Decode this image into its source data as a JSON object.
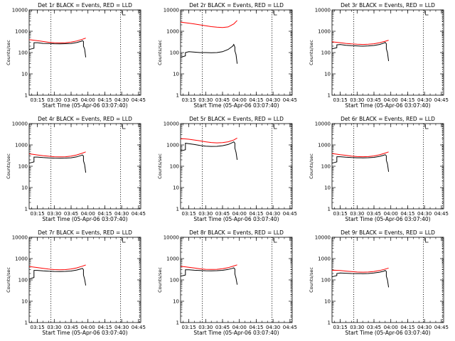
{
  "figure": {
    "x_tick_labels": [
      "03:15",
      "03:30",
      "03:45",
      "04:00",
      "04:15",
      "04:30",
      "04:45"
    ],
    "y_tick_labels": [
      "1",
      "10",
      "100",
      "1000",
      "10000"
    ],
    "xlabel": "Start Time (05-Apr-06 03:07:40)",
    "ylabel": "Counts/sec",
    "colors": {
      "events": "#000000",
      "lld": "#ff0000",
      "background": "#ffffff"
    }
  },
  "chart_data": [
    {
      "type": "line",
      "title": "Det 1r BLACK = Events, RED = LLD",
      "xlabel": "Start Time (05-Apr-06 03:07:40)",
      "ylabel": "Counts/sec",
      "y_scale": "log",
      "ylim": [
        1,
        10000
      ],
      "xlim": [
        "03:07:40",
        "04:47:00"
      ],
      "x_ticks": [
        "03:15",
        "03:30",
        "03:45",
        "04:00",
        "04:15",
        "04:30",
        "04:45"
      ],
      "y_ticks": [
        "1",
        "10",
        "100",
        "1000",
        "10000"
      ],
      "vertical_dotted_lines": [
        "03:27",
        "04:29",
        "04:46"
      ],
      "series": [
        {
          "name": "Events",
          "color": "#000000",
          "x": [
            "03:07:40",
            "03:10",
            "03:12",
            "03:12",
            "03:15",
            "03:20",
            "03:25",
            "03:30",
            "03:35",
            "03:40",
            "03:45",
            "03:50",
            "03:54",
            "03:55",
            "03:56",
            "03:56",
            "03:57",
            "03:58"
          ],
          "y": [
            140,
            150,
            160,
            290,
            290,
            270,
            265,
            260,
            258,
            262,
            268,
            295,
            340,
            360,
            330,
            200,
            150,
            60
          ]
        },
        {
          "name": "LLD",
          "color": "#ff0000",
          "x": [
            "03:07:40",
            "03:10",
            "03:15",
            "03:20",
            "03:25",
            "03:30",
            "03:35",
            "03:40",
            "03:45",
            "03:50",
            "03:55",
            "03:58"
          ],
          "y": [
            400,
            390,
            360,
            330,
            305,
            290,
            285,
            290,
            310,
            350,
            420,
            480
          ]
        }
      ]
    },
    {
      "type": "line",
      "title": "Det 2r BLACK = Events, RED = LLD",
      "xlabel": "Start Time (05-Apr-06 03:07:40)",
      "ylabel": "Counts/sec",
      "y_scale": "log",
      "ylim": [
        1,
        10000
      ],
      "xlim": [
        "03:07:40",
        "04:47:00"
      ],
      "x_ticks": [
        "03:15",
        "03:30",
        "03:45",
        "04:00",
        "04:15",
        "04:30",
        "04:45"
      ],
      "y_ticks": [
        "1",
        "10",
        "100",
        "1000",
        "10000"
      ],
      "vertical_dotted_lines": [
        "03:27",
        "04:29",
        "04:46"
      ],
      "series": [
        {
          "name": "Events",
          "color": "#000000",
          "x": [
            "03:07:40",
            "03:10",
            "03:12",
            "03:12",
            "03:15",
            "03:20",
            "03:25",
            "03:30",
            "03:35",
            "03:40",
            "03:45",
            "03:50",
            "03:54",
            "03:55",
            "03:56",
            "03:56",
            "03:57",
            "03:58"
          ],
          "y": [
            60,
            65,
            70,
            100,
            110,
            105,
            100,
            100,
            98,
            100,
            110,
            140,
            200,
            240,
            180,
            120,
            80,
            30
          ]
        },
        {
          "name": "LLD",
          "color": "#ff0000",
          "x": [
            "03:07:40",
            "03:10",
            "03:15",
            "03:20",
            "03:25",
            "03:30",
            "03:35",
            "03:40",
            "03:45",
            "03:50",
            "03:55",
            "03:58"
          ],
          "y": [
            2700,
            2600,
            2400,
            2200,
            2000,
            1800,
            1650,
            1550,
            1500,
            1600,
            2200,
            3200
          ]
        }
      ]
    },
    {
      "type": "line",
      "title": "Det 3r BLACK = Events, RED = LLD",
      "xlabel": "Start Time (05-Apr-06 03:07:40)",
      "ylabel": "Counts/sec",
      "y_scale": "log",
      "ylim": [
        1,
        10000
      ],
      "xlim": [
        "03:07:40",
        "04:47:00"
      ],
      "x_ticks": [
        "03:15",
        "03:30",
        "03:45",
        "04:00",
        "04:15",
        "04:30",
        "04:45"
      ],
      "y_ticks": [
        "1",
        "10",
        "100",
        "1000",
        "10000"
      ],
      "vertical_dotted_lines": [
        "03:27",
        "04:29",
        "04:46"
      ],
      "series": [
        {
          "name": "Events",
          "color": "#000000",
          "x": [
            "03:07:40",
            "03:10",
            "03:12",
            "03:12",
            "03:15",
            "03:20",
            "03:25",
            "03:30",
            "03:35",
            "03:40",
            "03:45",
            "03:50",
            "03:54",
            "03:55",
            "03:56",
            "03:56",
            "03:57",
            "03:58"
          ],
          "y": [
            150,
            160,
            170,
            230,
            240,
            220,
            210,
            205,
            200,
            205,
            215,
            240,
            280,
            300,
            260,
            150,
            100,
            40
          ]
        },
        {
          "name": "LLD",
          "color": "#ff0000",
          "x": [
            "03:07:40",
            "03:10",
            "03:15",
            "03:20",
            "03:25",
            "03:30",
            "03:35",
            "03:40",
            "03:45",
            "03:50",
            "03:55",
            "03:58"
          ],
          "y": [
            320,
            310,
            290,
            270,
            255,
            245,
            240,
            245,
            260,
            290,
            340,
            380
          ]
        }
      ]
    },
    {
      "type": "line",
      "title": "Det 4r BLACK = Events, RED = LLD",
      "xlabel": "Start Time (05-Apr-06 03:07:40)",
      "ylabel": "Counts/sec",
      "y_scale": "log",
      "ylim": [
        1,
        10000
      ],
      "xlim": [
        "03:07:40",
        "04:47:00"
      ],
      "x_ticks": [
        "03:15",
        "03:30",
        "03:45",
        "04:00",
        "04:15",
        "04:30",
        "04:45"
      ],
      "y_ticks": [
        "1",
        "10",
        "100",
        "1000",
        "10000"
      ],
      "vertical_dotted_lines": [
        "03:27",
        "04:29",
        "04:46"
      ],
      "series": [
        {
          "name": "Events",
          "color": "#000000",
          "x": [
            "03:07:40",
            "03:10",
            "03:12",
            "03:12",
            "03:15",
            "03:20",
            "03:25",
            "03:30",
            "03:35",
            "03:40",
            "03:45",
            "03:50",
            "03:54",
            "03:55",
            "03:56",
            "03:56",
            "03:57",
            "03:58"
          ],
          "y": [
            140,
            150,
            160,
            270,
            270,
            255,
            245,
            240,
            238,
            242,
            250,
            275,
            320,
            340,
            300,
            180,
            120,
            50
          ]
        },
        {
          "name": "LLD",
          "color": "#ff0000",
          "x": [
            "03:07:40",
            "03:10",
            "03:15",
            "03:20",
            "03:25",
            "03:30",
            "03:35",
            "03:40",
            "03:45",
            "03:50",
            "03:55",
            "03:58"
          ],
          "y": [
            380,
            370,
            340,
            315,
            295,
            280,
            275,
            280,
            300,
            340,
            410,
            470
          ]
        }
      ]
    },
    {
      "type": "line",
      "title": "Det 5r BLACK = Events, RED = LLD",
      "xlabel": "Start Time (05-Apr-06 03:07:40)",
      "ylabel": "Counts/sec",
      "y_scale": "log",
      "ylim": [
        1,
        10000
      ],
      "xlim": [
        "03:07:40",
        "04:47:00"
      ],
      "x_ticks": [
        "03:15",
        "03:30",
        "03:45",
        "04:00",
        "04:15",
        "04:30",
        "04:45"
      ],
      "y_ticks": [
        "1",
        "10",
        "100",
        "1000",
        "10000"
      ],
      "vertical_dotted_lines": [
        "03:27",
        "04:29",
        "04:46"
      ],
      "series": [
        {
          "name": "Events",
          "color": "#000000",
          "x": [
            "03:07:40",
            "03:10",
            "03:12",
            "03:12",
            "03:15",
            "03:20",
            "03:25",
            "03:30",
            "03:35",
            "03:40",
            "03:45",
            "03:50",
            "03:54",
            "03:55",
            "03:56",
            "03:56",
            "03:57",
            "03:58"
          ],
          "y": [
            550,
            560,
            600,
            1200,
            1150,
            1050,
            950,
            880,
            850,
            860,
            920,
            1050,
            1300,
            1400,
            1200,
            700,
            450,
            200
          ]
        },
        {
          "name": "LLD",
          "color": "#ff0000",
          "x": [
            "03:07:40",
            "03:10",
            "03:15",
            "03:20",
            "03:25",
            "03:30",
            "03:35",
            "03:40",
            "03:45",
            "03:50",
            "03:55",
            "03:58"
          ],
          "y": [
            1900,
            1950,
            1850,
            1700,
            1550,
            1400,
            1300,
            1250,
            1280,
            1400,
            1700,
            2100
          ]
        }
      ]
    },
    {
      "type": "line",
      "title": "Det 6r BLACK = Events, RED = LLD",
      "xlabel": "Start Time (05-Apr-06 03:07:40)",
      "ylabel": "Counts/sec",
      "y_scale": "log",
      "ylim": [
        1,
        10000
      ],
      "xlim": [
        "03:07:40",
        "04:47:00"
      ],
      "x_ticks": [
        "03:15",
        "03:30",
        "03:45",
        "04:00",
        "04:15",
        "04:30",
        "04:45"
      ],
      "y_ticks": [
        "1",
        "10",
        "100",
        "1000",
        "10000"
      ],
      "vertical_dotted_lines": [
        "03:27",
        "04:29",
        "04:46"
      ],
      "series": [
        {
          "name": "Events",
          "color": "#000000",
          "x": [
            "03:07:40",
            "03:10",
            "03:12",
            "03:12",
            "03:15",
            "03:20",
            "03:25",
            "03:30",
            "03:35",
            "03:40",
            "03:45",
            "03:50",
            "03:54",
            "03:55",
            "03:56",
            "03:56",
            "03:57",
            "03:58"
          ],
          "y": [
            140,
            150,
            160,
            280,
            280,
            265,
            255,
            250,
            248,
            252,
            262,
            290,
            330,
            350,
            310,
            190,
            130,
            55
          ]
        },
        {
          "name": "LLD",
          "color": "#ff0000",
          "x": [
            "03:07:40",
            "03:10",
            "03:15",
            "03:20",
            "03:25",
            "03:30",
            "03:35",
            "03:40",
            "03:45",
            "03:50",
            "03:55",
            "03:58"
          ],
          "y": [
            390,
            380,
            350,
            325,
            300,
            285,
            280,
            285,
            305,
            345,
            415,
            470
          ]
        }
      ]
    },
    {
      "type": "line",
      "title": "Det 7r BLACK = Events, RED = LLD",
      "xlabel": "Start Time (05-Apr-06 03:07:40)",
      "ylabel": "Counts/sec",
      "y_scale": "log",
      "ylim": [
        1,
        10000
      ],
      "xlim": [
        "03:07:40",
        "04:47:00"
      ],
      "x_ticks": [
        "03:15",
        "03:30",
        "03:45",
        "04:00",
        "04:15",
        "04:30",
        "04:45"
      ],
      "y_ticks": [
        "1",
        "10",
        "100",
        "1000",
        "10000"
      ],
      "vertical_dotted_lines": [
        "03:27",
        "04:29",
        "04:46"
      ],
      "series": [
        {
          "name": "Events",
          "color": "#000000",
          "x": [
            "03:07:40",
            "03:10",
            "03:12",
            "03:12",
            "03:15",
            "03:20",
            "03:25",
            "03:30",
            "03:35",
            "03:40",
            "03:45",
            "03:50",
            "03:54",
            "03:55",
            "03:56",
            "03:56",
            "03:57",
            "03:58"
          ],
          "y": [
            110,
            120,
            130,
            280,
            280,
            265,
            255,
            250,
            248,
            252,
            262,
            290,
            330,
            350,
            300,
            170,
            110,
            55
          ]
        },
        {
          "name": "LLD",
          "color": "#ff0000",
          "x": [
            "03:07:40",
            "03:10",
            "03:15",
            "03:20",
            "03:25",
            "03:30",
            "03:35",
            "03:40",
            "03:45",
            "03:50",
            "03:55",
            "03:58"
          ],
          "y": [
            420,
            410,
            380,
            350,
            320,
            305,
            300,
            305,
            325,
            365,
            440,
            500
          ]
        }
      ]
    },
    {
      "type": "line",
      "title": "Det 8r BLACK = Events, RED = LLD",
      "xlabel": "Start Time (05-Apr-06 03:07:40)",
      "ylabel": "Counts/sec",
      "y_scale": "log",
      "ylim": [
        1,
        10000
      ],
      "xlim": [
        "03:07:40",
        "04:47:00"
      ],
      "x_ticks": [
        "03:15",
        "03:30",
        "03:45",
        "04:00",
        "04:15",
        "04:30",
        "04:45"
      ],
      "y_ticks": [
        "1",
        "10",
        "100",
        "1000",
        "10000"
      ],
      "vertical_dotted_lines": [
        "03:27",
        "04:29",
        "04:46"
      ],
      "series": [
        {
          "name": "Events",
          "color": "#000000",
          "x": [
            "03:07:40",
            "03:10",
            "03:12",
            "03:12",
            "03:15",
            "03:20",
            "03:25",
            "03:30",
            "03:35",
            "03:40",
            "03:45",
            "03:50",
            "03:54",
            "03:55",
            "03:56",
            "03:56",
            "03:57",
            "03:58"
          ],
          "y": [
            150,
            160,
            170,
            300,
            300,
            285,
            275,
            270,
            268,
            272,
            282,
            310,
            350,
            370,
            320,
            190,
            120,
            60
          ]
        },
        {
          "name": "LLD",
          "color": "#ff0000",
          "x": [
            "03:07:40",
            "03:10",
            "03:15",
            "03:20",
            "03:25",
            "03:30",
            "03:35",
            "03:40",
            "03:45",
            "03:50",
            "03:55",
            "03:58"
          ],
          "y": [
            430,
            420,
            390,
            360,
            330,
            315,
            310,
            315,
            335,
            375,
            450,
            510
          ]
        }
      ]
    },
    {
      "type": "line",
      "title": "Det 9r BLACK = Events, RED = LLD",
      "xlabel": "Start Time (05-Apr-06 03:07:40)",
      "ylabel": "Counts/sec",
      "y_scale": "log",
      "ylim": [
        1,
        10000
      ],
      "xlim": [
        "03:07:40",
        "04:47:00"
      ],
      "x_ticks": [
        "03:15",
        "03:30",
        "03:45",
        "04:00",
        "04:15",
        "04:30",
        "04:45"
      ],
      "y_ticks": [
        "1",
        "10",
        "100",
        "1000",
        "10000"
      ],
      "vertical_dotted_lines": [
        "03:27",
        "04:29",
        "04:46"
      ],
      "series": [
        {
          "name": "Events",
          "color": "#000000",
          "x": [
            "03:07:40",
            "03:10",
            "03:12",
            "03:12",
            "03:15",
            "03:20",
            "03:25",
            "03:30",
            "03:35",
            "03:40",
            "03:45",
            "03:50",
            "03:54",
            "03:55",
            "03:56",
            "03:56",
            "03:57",
            "03:58"
          ],
          "y": [
            140,
            150,
            160,
            200,
            210,
            205,
            200,
            198,
            196,
            200,
            210,
            230,
            260,
            280,
            250,
            150,
            100,
            45
          ]
        },
        {
          "name": "LLD",
          "color": "#ff0000",
          "x": [
            "03:07:40",
            "03:10",
            "03:15",
            "03:20",
            "03:25",
            "03:30",
            "03:35",
            "03:40",
            "03:45",
            "03:50",
            "03:55",
            "03:58"
          ],
          "y": [
            280,
            285,
            275,
            260,
            245,
            235,
            230,
            235,
            250,
            275,
            320,
            360
          ]
        }
      ]
    }
  ]
}
